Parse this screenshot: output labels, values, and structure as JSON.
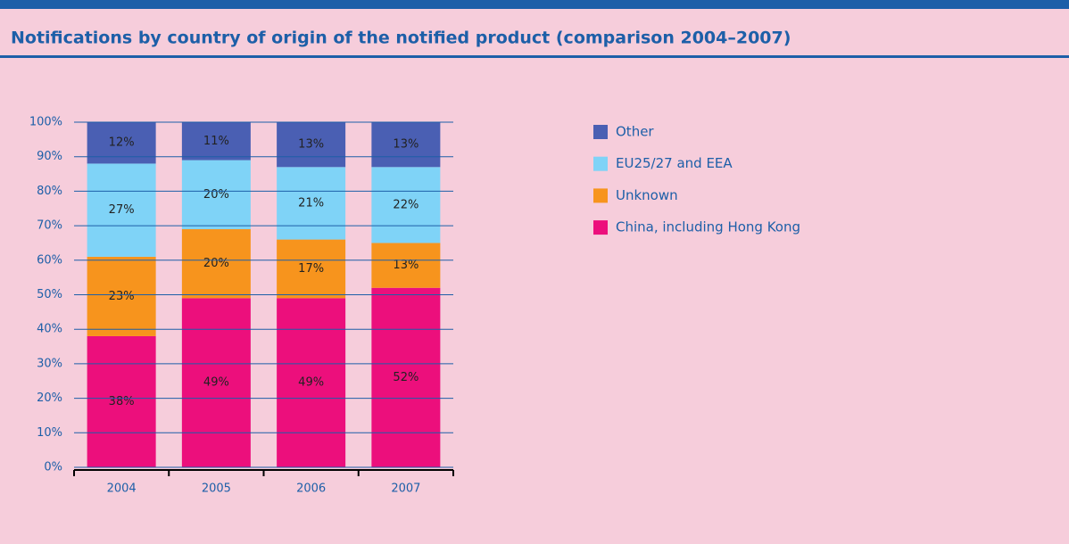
{
  "chart_data": {
    "type": "stacked_bar",
    "title": "Notifications by country of origin of the notified product (comparison 2004–2007)",
    "categories": [
      "2004",
      "2005",
      "2006",
      "2007"
    ],
    "series": [
      {
        "name": "China, including Hong Kong",
        "color": "#ec0f7c",
        "values": [
          38,
          49,
          49,
          52
        ],
        "value_labels": [
          "38%",
          "49%",
          "49%",
          "52%"
        ]
      },
      {
        "name": "Unknown",
        "color": "#f7941d",
        "values": [
          23,
          20,
          17,
          13
        ],
        "value_labels": [
          "23%",
          "20%",
          "17%",
          "13%"
        ]
      },
      {
        "name": "EU25/27 and EEA",
        "color": "#7fd3f7",
        "values": [
          27,
          20,
          21,
          22
        ],
        "value_labels": [
          "27%",
          "20%",
          "21%",
          "22%"
        ]
      },
      {
        "name": "Other",
        "color": "#4a5fb3",
        "values": [
          12,
          11,
          13,
          13
        ],
        "value_labels": [
          "12%",
          "11%",
          "13%",
          "13%"
        ]
      }
    ],
    "ylim": [
      0,
      100
    ],
    "yticks": [
      {
        "value": 0,
        "label": "0%"
      },
      {
        "value": 10,
        "label": "10%"
      },
      {
        "value": 20,
        "label": "20%"
      },
      {
        "value": 30,
        "label": "30%"
      },
      {
        "value": 40,
        "label": "40%"
      },
      {
        "value": 50,
        "label": "50%"
      },
      {
        "value": 60,
        "label": "60%"
      },
      {
        "value": 70,
        "label": "70%"
      },
      {
        "value": 80,
        "label": "80%"
      },
      {
        "value": 90,
        "label": "90%"
      },
      {
        "value": 100,
        "label": "100%"
      }
    ],
    "grid": true,
    "legend": "right"
  }
}
